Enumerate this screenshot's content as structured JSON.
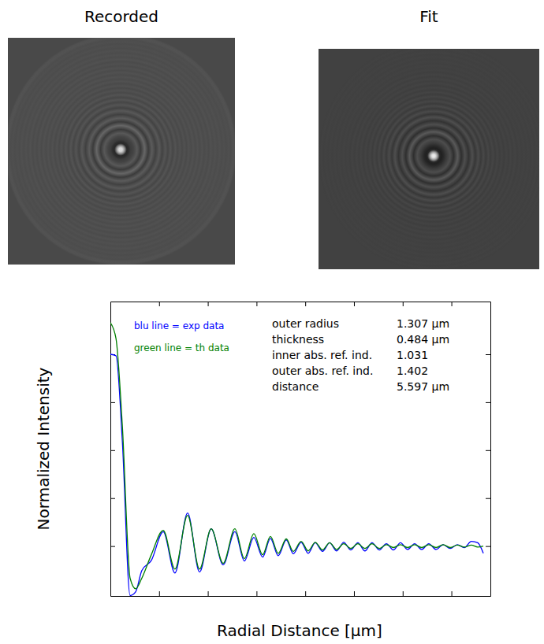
{
  "chart_data": {
    "type": "line",
    "x_label": "Radial Distance [µm]",
    "y_label": "Normalized Intensity",
    "x": [
      0,
      0.23,
      0.49,
      0.81,
      1.04,
      1.29,
      1.68,
      2.17,
      2.65,
      3.17,
      3.66,
      4.14,
      4.63,
      5.11,
      5.5,
      5.89,
      6.25,
      6.57,
      6.89,
      7.22,
      7.51,
      7.83,
      8.12,
      8.41,
      8.71,
      9.0,
      9.29,
      9.58,
      9.87,
      10.16,
      10.45,
      10.74,
      11.04,
      11.33,
      11.62,
      11.91,
      12.2,
      12.49,
      12.78,
      13.07,
      13.37,
      13.66,
      13.95,
      14.24,
      14.53,
      14.82,
      15.08,
      15.31
    ],
    "series": [
      {
        "name": "blu line = exp data",
        "color": "#0000ff",
        "values": [
          5.0,
          4.97,
          3.2,
          -0.03,
          0.05,
          0.49,
          0.7,
          1.3,
          0.44,
          1.69,
          0.46,
          1.36,
          0.61,
          1.3,
          0.69,
          1.18,
          0.77,
          1.16,
          0.8,
          1.13,
          0.84,
          1.08,
          0.85,
          1.07,
          0.89,
          1.07,
          0.9,
          1.08,
          0.92,
          1.07,
          0.9,
          1.07,
          0.92,
          1.05,
          0.92,
          1.07,
          0.93,
          1.05,
          0.93,
          1.05,
          0.93,
          1.03,
          0.95,
          1.03,
          0.97,
          1.1,
          1.07,
          0.85
        ]
      },
      {
        "name": "green line = th data",
        "color": "#008000",
        "values": [
          5.66,
          5.33,
          3.52,
          0.33,
          0.11,
          0.33,
          0.82,
          1.33,
          0.52,
          1.64,
          0.52,
          1.36,
          0.64,
          1.36,
          0.74,
          1.26,
          0.82,
          1.2,
          0.85,
          1.15,
          0.89,
          1.1,
          0.9,
          1.08,
          0.92,
          1.07,
          0.93,
          1.05,
          0.95,
          1.05,
          0.95,
          1.05,
          0.95,
          1.03,
          0.97,
          1.03,
          0.97,
          1.03,
          0.97,
          1.03,
          0.97,
          1.03,
          0.97,
          1.02,
          0.98,
          1.02,
          0.98,
          1.0
        ]
      }
    ],
    "xlim": [
      0,
      15.6
    ],
    "xticks": [
      2,
      4,
      6,
      8,
      10,
      12,
      14
    ],
    "ylim": [
      -0.04,
      6.1
    ],
    "yticks": [
      1,
      2,
      3,
      4,
      5
    ],
    "tick_labels": false,
    "legend": "upper left",
    "annotations": [
      {
        "label": "outer radius",
        "value": "1.307 µm"
      },
      {
        "label": "thickness",
        "value": "0.484 µm"
      },
      {
        "label": "inner abs. ref. ind.",
        "value": "1.031"
      },
      {
        "label": "outer abs. ref. ind.",
        "value": "1.402"
      },
      {
        "label": "distance",
        "value": "5.597 µm"
      }
    ]
  },
  "image_panels": [
    {
      "title": "Recorded"
    },
    {
      "title": "Fit"
    }
  ]
}
